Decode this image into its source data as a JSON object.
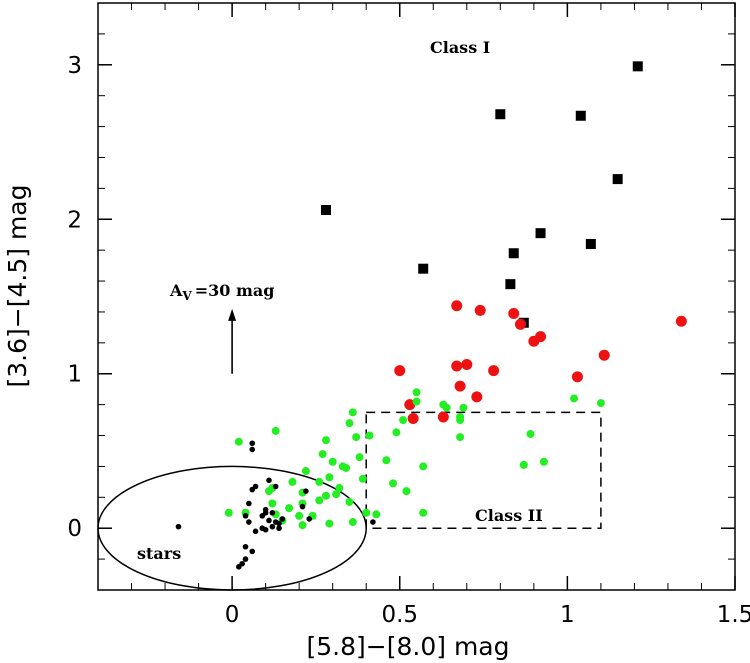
{
  "chart_data": {
    "type": "scatter",
    "xlabel": "[5.8]−[8.0] mag",
    "ylabel": "[3.6]−[4.5] mag",
    "xlim": [
      -0.4,
      1.5
    ],
    "ylim": [
      -0.4,
      3.4
    ],
    "xticks": [
      0,
      0.5,
      1,
      1.5
    ],
    "xtick_labels": [
      "0",
      "0.5",
      "1",
      "1.5"
    ],
    "yticks": [
      0,
      1,
      2,
      3
    ],
    "ytick_labels": [
      "0",
      "1",
      "2",
      "3"
    ],
    "grid": false,
    "annotations": {
      "class1": "Class I",
      "class2": "Class II",
      "stars": "stars",
      "extinction_prefix": "A",
      "extinction_sub": "V",
      "extinction_value": "=30 mag"
    },
    "extinction_arrow": {
      "x": 0.0,
      "y0": 1.0,
      "y1": 1.42
    },
    "class2_box": {
      "x0": 0.4,
      "x1": 1.1,
      "y0": 0.0,
      "y1": 0.75
    },
    "stars_ellipse": {
      "cx": 0.0,
      "cy": 0.0,
      "rx": 0.4,
      "ry": 0.4
    },
    "series": [
      {
        "marker": "square",
        "color": "#000000",
        "points": [
          [
            0.28,
            2.06
          ],
          [
            0.57,
            1.68
          ],
          [
            0.8,
            2.68
          ],
          [
            0.83,
            1.58
          ],
          [
            0.84,
            1.78
          ],
          [
            0.87,
            1.33
          ],
          [
            0.92,
            1.91
          ],
          [
            1.04,
            2.67
          ],
          [
            1.07,
            1.84
          ],
          [
            1.15,
            2.26
          ],
          [
            1.21,
            2.99
          ]
        ]
      },
      {
        "marker": "circle",
        "color": "#ee1111",
        "points": [
          [
            0.5,
            1.02
          ],
          [
            0.53,
            0.8
          ],
          [
            0.54,
            0.71
          ],
          [
            0.63,
            0.72
          ],
          [
            0.67,
            1.44
          ],
          [
            0.67,
            1.05
          ],
          [
            0.68,
            0.92
          ],
          [
            0.7,
            1.06
          ],
          [
            0.73,
            0.85
          ],
          [
            0.74,
            1.41
          ],
          [
            0.78,
            1.02
          ],
          [
            0.84,
            1.39
          ],
          [
            0.86,
            1.32
          ],
          [
            0.9,
            1.21
          ],
          [
            0.92,
            1.24
          ],
          [
            1.03,
            0.98
          ],
          [
            1.11,
            1.12
          ],
          [
            1.34,
            1.34
          ]
        ]
      },
      {
        "marker": "dot",
        "color": "#22ee22",
        "points": [
          [
            0.02,
            0.56
          ],
          [
            -0.01,
            0.1
          ],
          [
            0.04,
            0.1
          ],
          [
            0.11,
            0.24
          ],
          [
            0.12,
            0.26
          ],
          [
            0.12,
            0.16
          ],
          [
            0.13,
            0.09
          ],
          [
            0.13,
            0.63
          ],
          [
            0.15,
            0.05
          ],
          [
            0.17,
            0.13
          ],
          [
            0.18,
            0.3
          ],
          [
            0.2,
            0.08
          ],
          [
            0.21,
            0.16
          ],
          [
            0.21,
            0.23
          ],
          [
            0.21,
            0.02
          ],
          [
            0.22,
            0.37
          ],
          [
            0.24,
            0.08
          ],
          [
            0.26,
            0.18
          ],
          [
            0.26,
            0.3
          ],
          [
            0.28,
            0.21
          ],
          [
            0.29,
            0.03
          ],
          [
            0.29,
            0.33
          ],
          [
            0.27,
            0.48
          ],
          [
            0.28,
            0.57
          ],
          [
            0.3,
            0.43
          ],
          [
            0.31,
            0.22
          ],
          [
            0.32,
            0.26
          ],
          [
            0.33,
            0.4
          ],
          [
            0.34,
            0.39
          ],
          [
            0.35,
            0.17
          ],
          [
            0.35,
            0.68
          ],
          [
            0.36,
            0.75
          ],
          [
            0.36,
            0.04
          ],
          [
            0.37,
            0.59
          ],
          [
            0.38,
            0.46
          ],
          [
            0.39,
            0.32
          ],
          [
            0.4,
            0.1
          ],
          [
            0.41,
            0.6
          ],
          [
            0.43,
            0.09
          ],
          [
            0.46,
            0.44
          ],
          [
            0.48,
            0.29
          ],
          [
            0.49,
            0.62
          ],
          [
            0.51,
            0.7
          ],
          [
            0.52,
            0.24
          ],
          [
            0.55,
            0.82
          ],
          [
            0.55,
            0.88
          ],
          [
            0.57,
            0.1
          ],
          [
            0.57,
            0.4
          ],
          [
            0.63,
            0.8
          ],
          [
            0.64,
            0.78
          ],
          [
            0.68,
            0.72
          ],
          [
            0.68,
            0.7
          ],
          [
            0.68,
            0.59
          ],
          [
            0.69,
            0.78
          ],
          [
            0.87,
            0.41
          ],
          [
            0.89,
            0.61
          ],
          [
            0.93,
            0.43
          ],
          [
            1.02,
            0.84
          ],
          [
            1.1,
            0.81
          ]
        ]
      },
      {
        "marker": "small-dot",
        "color": "#000000",
        "points": [
          [
            -0.16,
            0.01
          ],
          [
            0.06,
            0.51
          ],
          [
            0.06,
            0.55
          ],
          [
            0.07,
            0.27
          ],
          [
            0.06,
            0.25
          ],
          [
            0.05,
            0.16
          ],
          [
            0.04,
            0.08
          ],
          [
            0.05,
            0.04
          ],
          [
            0.09,
            0.08
          ],
          [
            0.1,
            0.1
          ],
          [
            0.11,
            0.05
          ],
          [
            0.1,
            0.12
          ],
          [
            0.09,
            0.0
          ],
          [
            0.07,
            -0.02
          ],
          [
            0.04,
            -0.12
          ],
          [
            0.06,
            -0.15
          ],
          [
            0.04,
            -0.2
          ],
          [
            0.03,
            -0.23
          ],
          [
            0.02,
            -0.25
          ],
          [
            0.1,
            -0.01
          ],
          [
            0.12,
            0.01
          ],
          [
            0.11,
            0.31
          ],
          [
            0.12,
            0.1
          ],
          [
            0.13,
            0.04
          ],
          [
            0.14,
            0.03
          ],
          [
            0.13,
            0.27
          ],
          [
            0.14,
            0.0
          ],
          [
            0.15,
            0.06
          ],
          [
            0.21,
            0.14
          ],
          [
            0.23,
            0.06
          ],
          [
            0.22,
            0.24
          ],
          [
            0.42,
            0.04
          ]
        ]
      }
    ]
  }
}
